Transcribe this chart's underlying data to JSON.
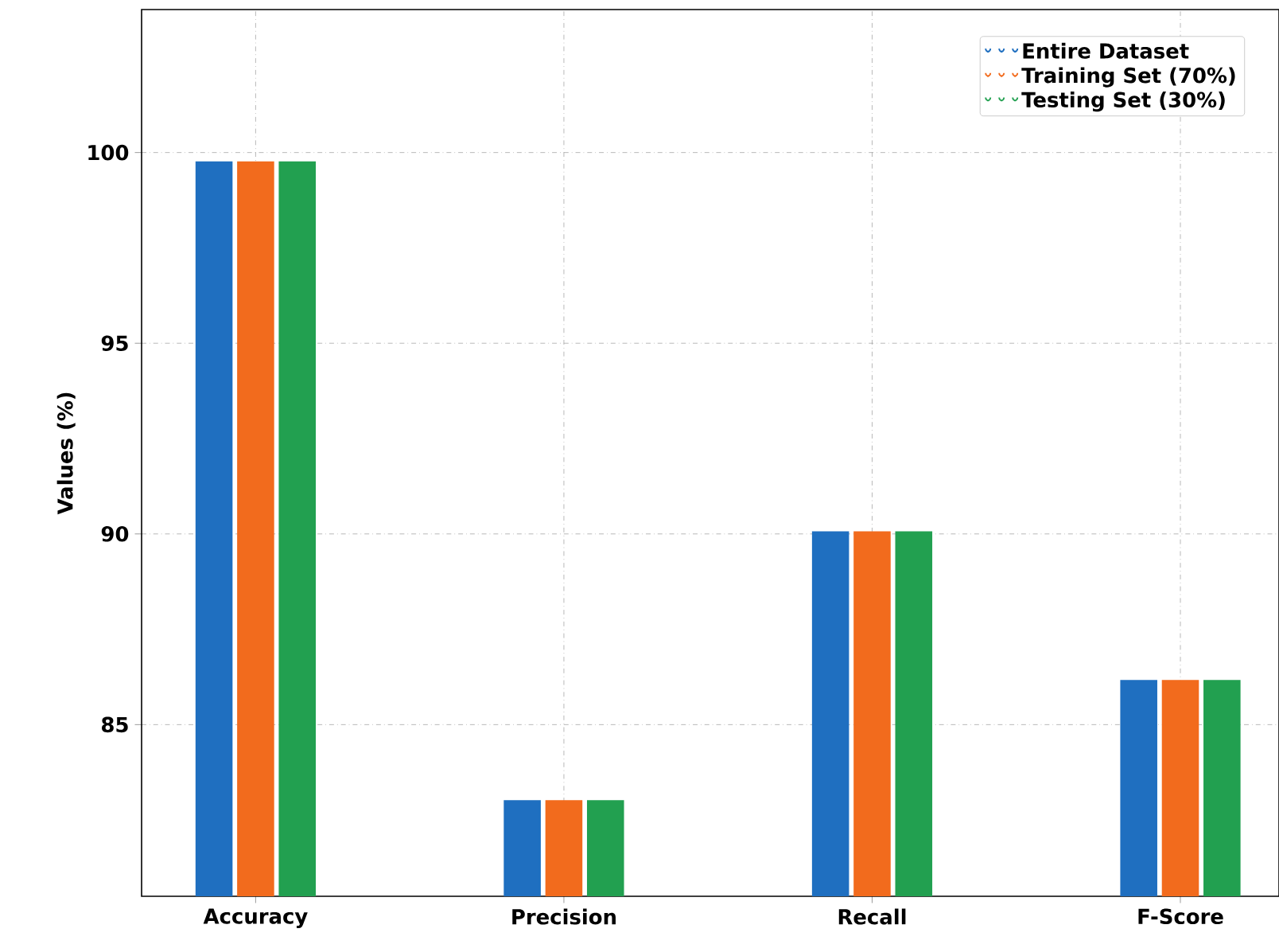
{
  "chart_data": {
    "type": "bar",
    "ylabel": "Values (%)",
    "categories": [
      "Accuracy",
      "Precision",
      "Recall",
      "F-Score"
    ],
    "series": [
      {
        "name": "Entire Dataset",
        "color": "#1f6fc0",
        "values": [
          99.75,
          83.0,
          90.05,
          86.15
        ]
      },
      {
        "name": "Training Set (70%)",
        "color": "#f26b1d",
        "values": [
          99.75,
          83.0,
          90.05,
          86.15
        ]
      },
      {
        "name": "Testing Set (30%)",
        "color": "#22a050",
        "values": [
          99.75,
          83.0,
          90.05,
          86.15
        ]
      }
    ],
    "ylim": [
      80.5,
      103.75
    ],
    "yticks": [
      85,
      90,
      95,
      100
    ],
    "grid": true,
    "legend": "top right"
  }
}
